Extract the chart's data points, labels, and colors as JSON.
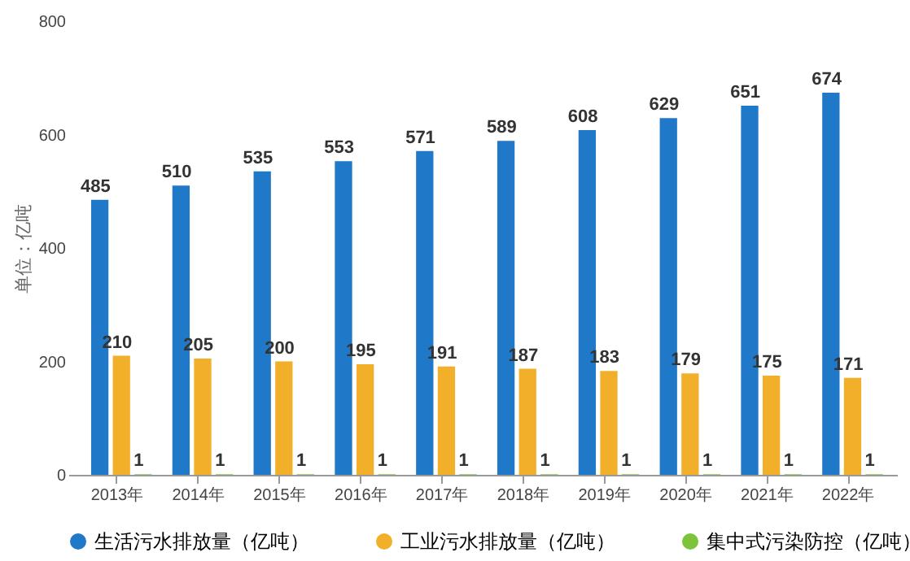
{
  "chart_data": {
    "type": "bar",
    "ylabel": "单位：亿吨",
    "categories": [
      "2013年",
      "2014年",
      "2015年",
      "2016年",
      "2017年",
      "2018年",
      "2019年",
      "2020年",
      "2021年",
      "2022年"
    ],
    "series": [
      {
        "name": "生活污水排放量（亿吨）",
        "color": "#1f78c8",
        "values": [
          485,
          510,
          535,
          553,
          571,
          589,
          608,
          629,
          651,
          674
        ]
      },
      {
        "name": "工业污水排放量（亿吨）",
        "color": "#f2b02a",
        "values": [
          210,
          205,
          200,
          195,
          191,
          187,
          183,
          179,
          175,
          171
        ]
      },
      {
        "name": "集中式污染防控（亿吨）",
        "color": "#7cc43c",
        "values": [
          1,
          1,
          1,
          1,
          1,
          1,
          1,
          1,
          1,
          1
        ]
      }
    ],
    "ylim": [
      0,
      800
    ],
    "yticks": [
      0,
      200,
      400,
      600,
      800
    ],
    "grid": false,
    "legend": "bottom",
    "data_labels": true
  }
}
